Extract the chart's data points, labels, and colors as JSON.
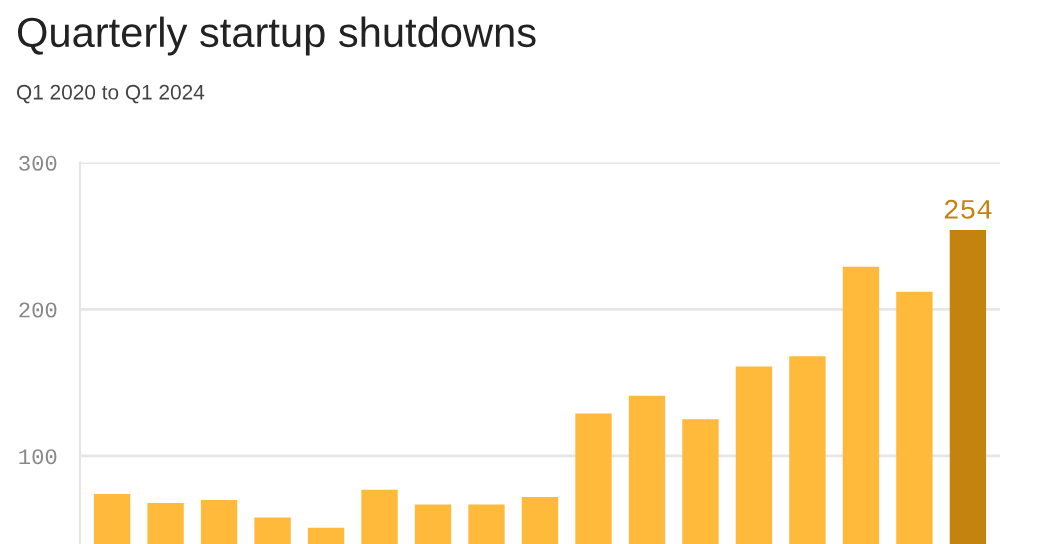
{
  "chart_data": {
    "type": "bar",
    "title": "Quarterly startup shutdowns",
    "subtitle": "Q1 2020 to Q1 2024",
    "categories": [
      null,
      null,
      null,
      null,
      null,
      null,
      null,
      null,
      null,
      null,
      null,
      null,
      null,
      null,
      null,
      null,
      null
    ],
    "values": [
      74,
      68,
      70,
      58,
      51,
      77,
      67,
      67,
      72,
      129,
      141,
      125,
      161,
      168,
      229,
      212,
      254
    ],
    "colors": [
      "#ffb93b",
      "#ffb93b",
      "#ffb93b",
      "#ffb93b",
      "#ffb93b",
      "#ffb93b",
      "#ffb93b",
      "#ffb93b",
      "#ffb93b",
      "#ffb93b",
      "#ffb93b",
      "#ffb93b",
      "#ffb93b",
      "#ffb93b",
      "#ffb93b",
      "#ffb93b",
      "#c4820e"
    ],
    "value_labels": [
      null,
      null,
      null,
      null,
      null,
      null,
      null,
      null,
      null,
      null,
      null,
      null,
      null,
      null,
      null,
      null,
      "254"
    ],
    "ylim": [
      40,
      300
    ],
    "yticks": [
      100,
      200,
      300
    ],
    "grid": "y",
    "tick_labels": "y"
  }
}
